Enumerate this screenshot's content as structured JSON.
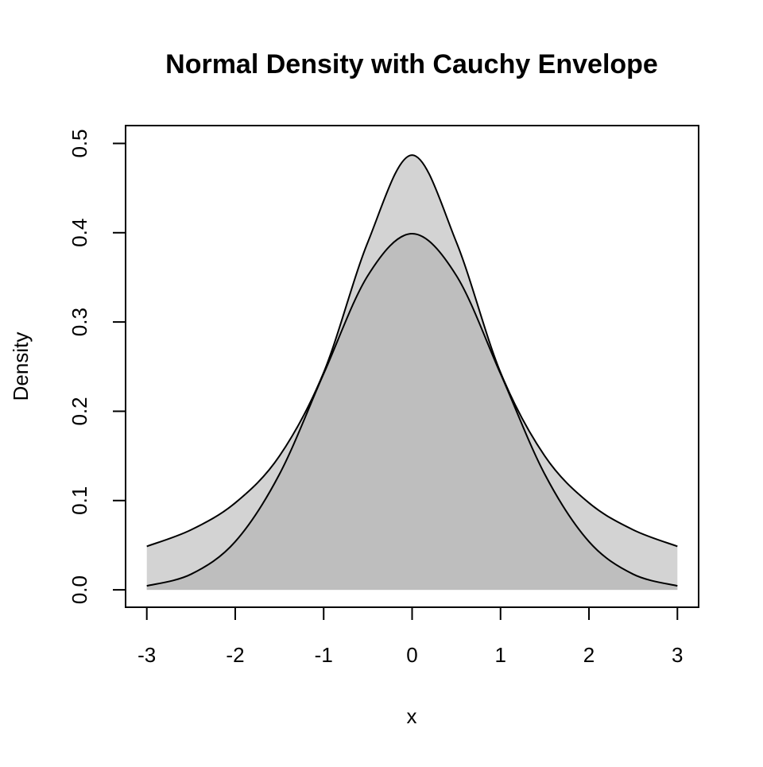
{
  "chart_data": {
    "type": "area",
    "title": "Normal Density with Cauchy Envelope",
    "xlabel": "x",
    "ylabel": "Density",
    "xlim": [
      -3.24,
      3.24
    ],
    "ylim": [
      -0.0195,
      0.52
    ],
    "x_ticks": [
      -3,
      -2,
      -1,
      0,
      1,
      2,
      3
    ],
    "x_tick_labels": [
      "-3",
      "-2",
      "-1",
      "0",
      "1",
      "2",
      "3"
    ],
    "y_ticks": [
      0.0,
      0.1,
      0.2,
      0.3,
      0.4,
      0.5
    ],
    "y_tick_labels": [
      "0.0",
      "0.1",
      "0.2",
      "0.3",
      "0.4",
      "0.5"
    ],
    "grid": false,
    "legend": "none",
    "colors": {
      "envelope_fill": "#d3d3d3",
      "density_fill": "#bebebe",
      "line": "#000000"
    },
    "series": [
      {
        "x": [
          -3,
          -2.5,
          -2,
          -1.5,
          -1,
          -0.5,
          0,
          0.5,
          1,
          1.5,
          2,
          2.5,
          3
        ],
        "values": [
          0.0487,
          0.0672,
          0.0974,
          0.1499,
          0.2435,
          0.3896,
          0.487,
          0.3896,
          0.2435,
          0.1499,
          0.0974,
          0.0672,
          0.0487
        ]
      },
      {
        "x": [
          -3,
          -2.5,
          -2,
          -1.5,
          -1,
          -0.5,
          0,
          0.5,
          1,
          1.5,
          2,
          2.5,
          3
        ],
        "values": [
          0.0044,
          0.0175,
          0.054,
          0.1295,
          0.242,
          0.3521,
          0.3989,
          0.3521,
          0.242,
          0.1295,
          0.054,
          0.0175,
          0.0044
        ]
      }
    ]
  }
}
